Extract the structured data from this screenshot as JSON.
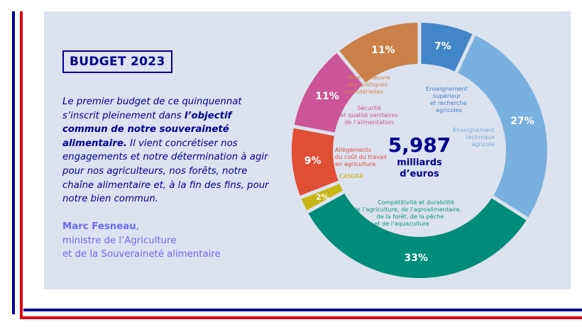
{
  "header": {
    "title": "BUDGET 2023"
  },
  "quote": {
    "part1": "Le premier budget de ce quinquennat s’inscrit pleinement dans ",
    "bold": "l’objectif commun de notre souveraineté alimentaire.",
    "part2": " Il vient concrétiser nos engagements et notre détermination à agir pour nos agriculteurs, nos forêts, notre chaîne alimentaire et, à la fin des fins, pour notre bien commun."
  },
  "author": {
    "name": "Marc Fesneau",
    "role_line1": "ministre de l’Agriculture",
    "role_line2": "et de la Souveraineté alimentaire"
  },
  "colors": {
    "blue_france": "#000091",
    "red_marianne": "#e1000f",
    "panel_bg": "#dce2ef"
  },
  "chart_data": {
    "type": "pie",
    "variant": "donut",
    "title": "BUDGET 2023",
    "center_value": "5,987",
    "center_unit_line1": "milliards",
    "center_unit_line2": "d’euros",
    "start": "top",
    "direction": "clockwise",
    "series": [
      {
        "name": "Enseignement supérieur et recherche agricoles",
        "value": 7,
        "value_label": "7%",
        "color": "#4285c9",
        "label_color": "#3e7fc7",
        "label_lines": [
          "Enseignement",
          "supérieur",
          "et recherche",
          "agricoles"
        ]
      },
      {
        "name": "Enseignement technique agricole",
        "value": 27,
        "value_label": "27%",
        "color": "#78b0e0",
        "label_color": "#72a9dc",
        "label_lines": [
          "Enseignement",
          "technique",
          "agricole"
        ]
      },
      {
        "name": "Compétitivité et durabilité de l’agriculture, de l’agroalimentaire, de la forêt, de la pêche et de l’aquaculture",
        "value": 33,
        "value_label": "33%",
        "color": "#008c7a",
        "label_color": "#0c9682",
        "label_lines": [
          "Compétitivité et durabilité",
          "de l’agriculture, de l’agroalimentaire,",
          "de la forêt, de la pêche",
          "et de l’aquaculture"
        ]
      },
      {
        "name": "CASDAR",
        "value": 2,
        "value_label": "2%",
        "color": "#c8b614",
        "label_color": "#c8b000",
        "label_lines": [
          "CASDAR"
        ]
      },
      {
        "name": "Allègements du coût du travail en agriculture",
        "value": 9,
        "value_label": "9%",
        "color": "#e04e35",
        "label_color": "#e04e35",
        "label_lines": [
          "Allègements",
          "du coût du travail",
          "en agriculture"
        ]
      },
      {
        "name": "Sécurité et qualité sanitaires de l’alimentation",
        "value": 11,
        "value_label": "11%",
        "color": "#cc5599",
        "label_color": "#cc5599",
        "label_lines": [
          "Sécurité",
          "et qualité sanitaires",
          "de l’alimentation"
        ]
      },
      {
        "name": "Mise en œuvre des politiques ministérielles",
        "value": 11,
        "value_label": "11%",
        "color": "#c98149",
        "label_color": "#d0864e",
        "label_lines": [
          "Mise en œuvre",
          "des politiques",
          "ministérielles"
        ]
      }
    ]
  }
}
